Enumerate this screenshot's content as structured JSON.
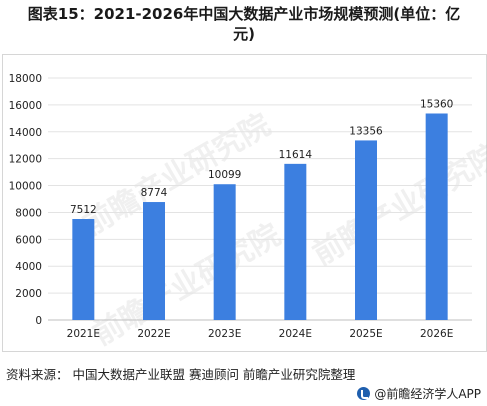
{
  "title_line1": "图表15：2021-2026年中国大数据产业市场规模预测(单位：亿",
  "title_line2": "元)",
  "source": "资料来源： 中国大数据产业联盟 赛迪顾问 前瞻产业研究院整理",
  "footer_brand": "@前瞻经济学人APP",
  "watermark_text": "前瞻产业研究院",
  "colors": {
    "bar": "#3c7fe0",
    "grid": "#e3e3e3",
    "axis": "#bfbfbf",
    "text": "#222222"
  },
  "chart_data": {
    "type": "bar",
    "categories": [
      "2021E",
      "2022E",
      "2023E",
      "2024E",
      "2025E",
      "2026E"
    ],
    "values": [
      7512,
      8774,
      10099,
      11614,
      13356,
      15360
    ],
    "data_labels": [
      "7512",
      "8774",
      "10099",
      "11614",
      "13356",
      "15360"
    ],
    "ylim": [
      0,
      18000
    ],
    "yticks": [
      0,
      2000,
      4000,
      6000,
      8000,
      10000,
      12000,
      14000,
      16000,
      18000
    ],
    "grid": true,
    "legend": "none"
  }
}
